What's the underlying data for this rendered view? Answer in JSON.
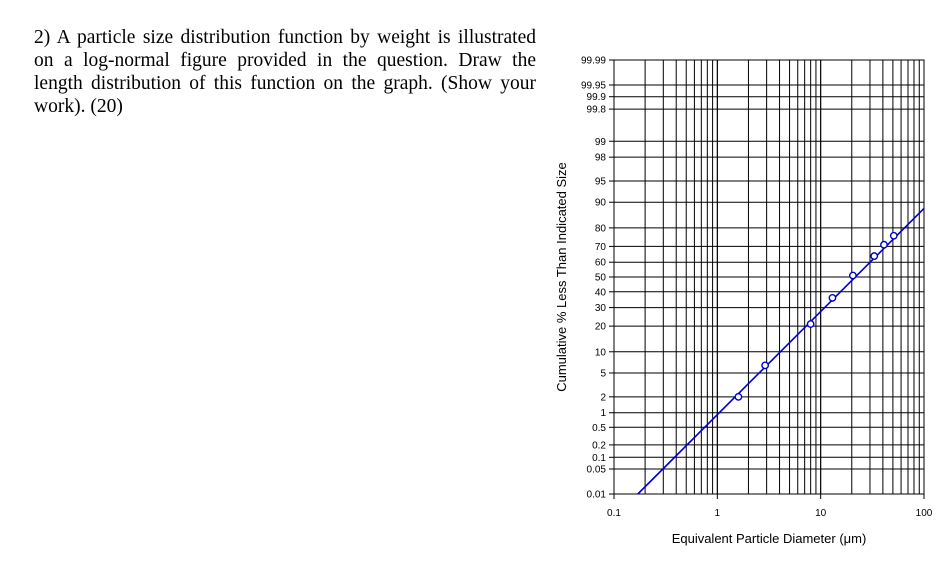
{
  "question": {
    "text": "2) A particle size distribution function by weight is illustrated on a log-normal figure provided in the question. Draw the length distribution of this function on the graph. (Show your work). (20)"
  },
  "chart_data": {
    "type": "scatter",
    "title": "",
    "xlabel": "Equivalent Particle Diameter (μm)",
    "ylabel": "Cumulative % Less Than Indicated Size",
    "x_scale": "log",
    "y_scale": "probability",
    "xlim": [
      0.1,
      100
    ],
    "ylim": [
      0.01,
      99.99
    ],
    "x_ticks": [
      "0.1",
      "1",
      "10",
      "100"
    ],
    "y_ticks": [
      "0.01",
      "0.05",
      "0.1",
      "0.2",
      "0.5",
      "1",
      "2",
      "5",
      "10",
      "20",
      "30",
      "40",
      "50",
      "60",
      "70",
      "80",
      "90",
      "95",
      "98",
      "99",
      "99.8",
      "99.9",
      "99.95",
      "99.99"
    ],
    "grid": true,
    "series": [
      {
        "kind": "points",
        "color": "#0000cc",
        "x": [
          1.6,
          2.9,
          8.0,
          13.0,
          20.5,
          33.0,
          41.0,
          51.0
        ],
        "y": [
          2,
          6.5,
          21,
          36,
          51,
          64,
          71,
          76
        ]
      },
      {
        "kind": "fit-line",
        "color": "#0000cc",
        "x": [
          0.17,
          100
        ],
        "y": [
          0.01,
          88
        ]
      }
    ]
  }
}
